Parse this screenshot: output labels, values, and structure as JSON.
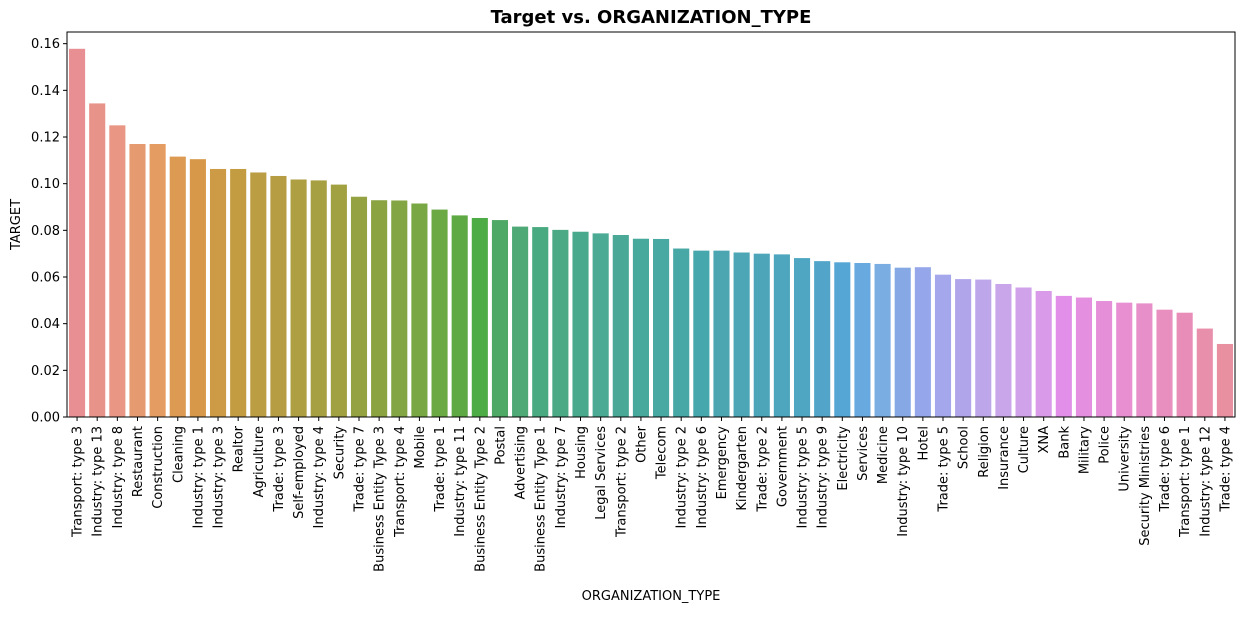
{
  "chart_data": {
    "type": "bar",
    "title": "Target vs. ORGANIZATION_TYPE",
    "xlabel": "ORGANIZATION_TYPE",
    "ylabel": "TARGET",
    "ylim": [
      0,
      0.165
    ],
    "yticks": [
      "0.00",
      "0.02",
      "0.04",
      "0.06",
      "0.08",
      "0.10",
      "0.12",
      "0.14",
      "0.16"
    ],
    "grid": false,
    "categories": [
      "Transport: type 3",
      "Industry: type 13",
      "Industry: type 8",
      "Restaurant",
      "Construction",
      "Cleaning",
      "Industry: type 1",
      "Industry: type 3",
      "Realtor",
      "Agriculture",
      "Trade: type 3",
      "Self-employed",
      "Industry: type 4",
      "Security",
      "Trade: type 7",
      "Business Entity Type 3",
      "Transport: type 4",
      "Mobile",
      "Trade: type 1",
      "Industry: type 11",
      "Business Entity Type 2",
      "Postal",
      "Advertising",
      "Business Entity Type 1",
      "Industry: type 7",
      "Housing",
      "Legal Services",
      "Transport: type 2",
      "Other",
      "Telecom",
      "Industry: type 2",
      "Industry: type 6",
      "Emergency",
      "Kindergarten",
      "Trade: type 2",
      "Government",
      "Industry: type 5",
      "Industry: type 9",
      "Electricity",
      "Services",
      "Medicine",
      "Industry: type 10",
      "Hotel",
      "Trade: type 5",
      "School",
      "Religion",
      "Insurance",
      "Culture",
      "XNA",
      "Bank",
      "Military",
      "Police",
      "University",
      "Security Ministries",
      "Trade: type 6",
      "Transport: type 1",
      "Industry: type 12",
      "Trade: type 4"
    ],
    "values": [
      0.1578,
      0.1344,
      0.125,
      0.117,
      0.117,
      0.1116,
      0.1105,
      0.1063,
      0.1063,
      0.1048,
      0.1033,
      0.1018,
      0.1014,
      0.0996,
      0.0944,
      0.0929,
      0.0928,
      0.0915,
      0.0889,
      0.0864,
      0.0853,
      0.0844,
      0.0816,
      0.0814,
      0.0802,
      0.0794,
      0.0787,
      0.078,
      0.0764,
      0.0763,
      0.0722,
      0.0713,
      0.0713,
      0.0705,
      0.07,
      0.0697,
      0.0681,
      0.0668,
      0.0663,
      0.066,
      0.0656,
      0.064,
      0.0642,
      0.061,
      0.0591,
      0.0589,
      0.057,
      0.0555,
      0.054,
      0.0519,
      0.0512,
      0.0497,
      0.049,
      0.0487,
      0.046,
      0.0447,
      0.0379,
      0.0313
    ],
    "colors": [
      "#e88f93",
      "#e8938a",
      "#e99784",
      "#e69a6f",
      "#e59c62",
      "#dc9a52",
      "#d79949",
      "#cd9a45",
      "#c39c42",
      "#bb9d44",
      "#b69d44",
      "#ae9f43",
      "#a6a042",
      "#a2a142",
      "#95a242",
      "#8ca342",
      "#83a544",
      "#78a743",
      "#6aa944",
      "#5ea943",
      "#4eac47",
      "#4ea966",
      "#4ea977",
      "#49aa81",
      "#4ba985",
      "#48a98c",
      "#4baa93",
      "#4aa996",
      "#47a99c",
      "#48a9a2",
      "#47a8a6",
      "#46a7ac",
      "#4ba6b1",
      "#4ca6b5",
      "#4da5ba",
      "#4ea6be",
      "#4ea6c2",
      "#52a5c9",
      "#56a6d5",
      "#68aae0",
      "#7aaee3",
      "#86a9e6",
      "#95a7ea",
      "#a4a7eb",
      "#b0a5eb",
      "#bea6eb",
      "#c9a5ea",
      "#cfa2ea",
      "#d89ae9",
      "#e18fe8",
      "#e58fe1",
      "#e68fd9",
      "#e78fd1",
      "#e68fc8",
      "#e88fc0",
      "#e88db7",
      "#e88fab",
      "#e8909f"
    ],
    "legend": "none"
  }
}
